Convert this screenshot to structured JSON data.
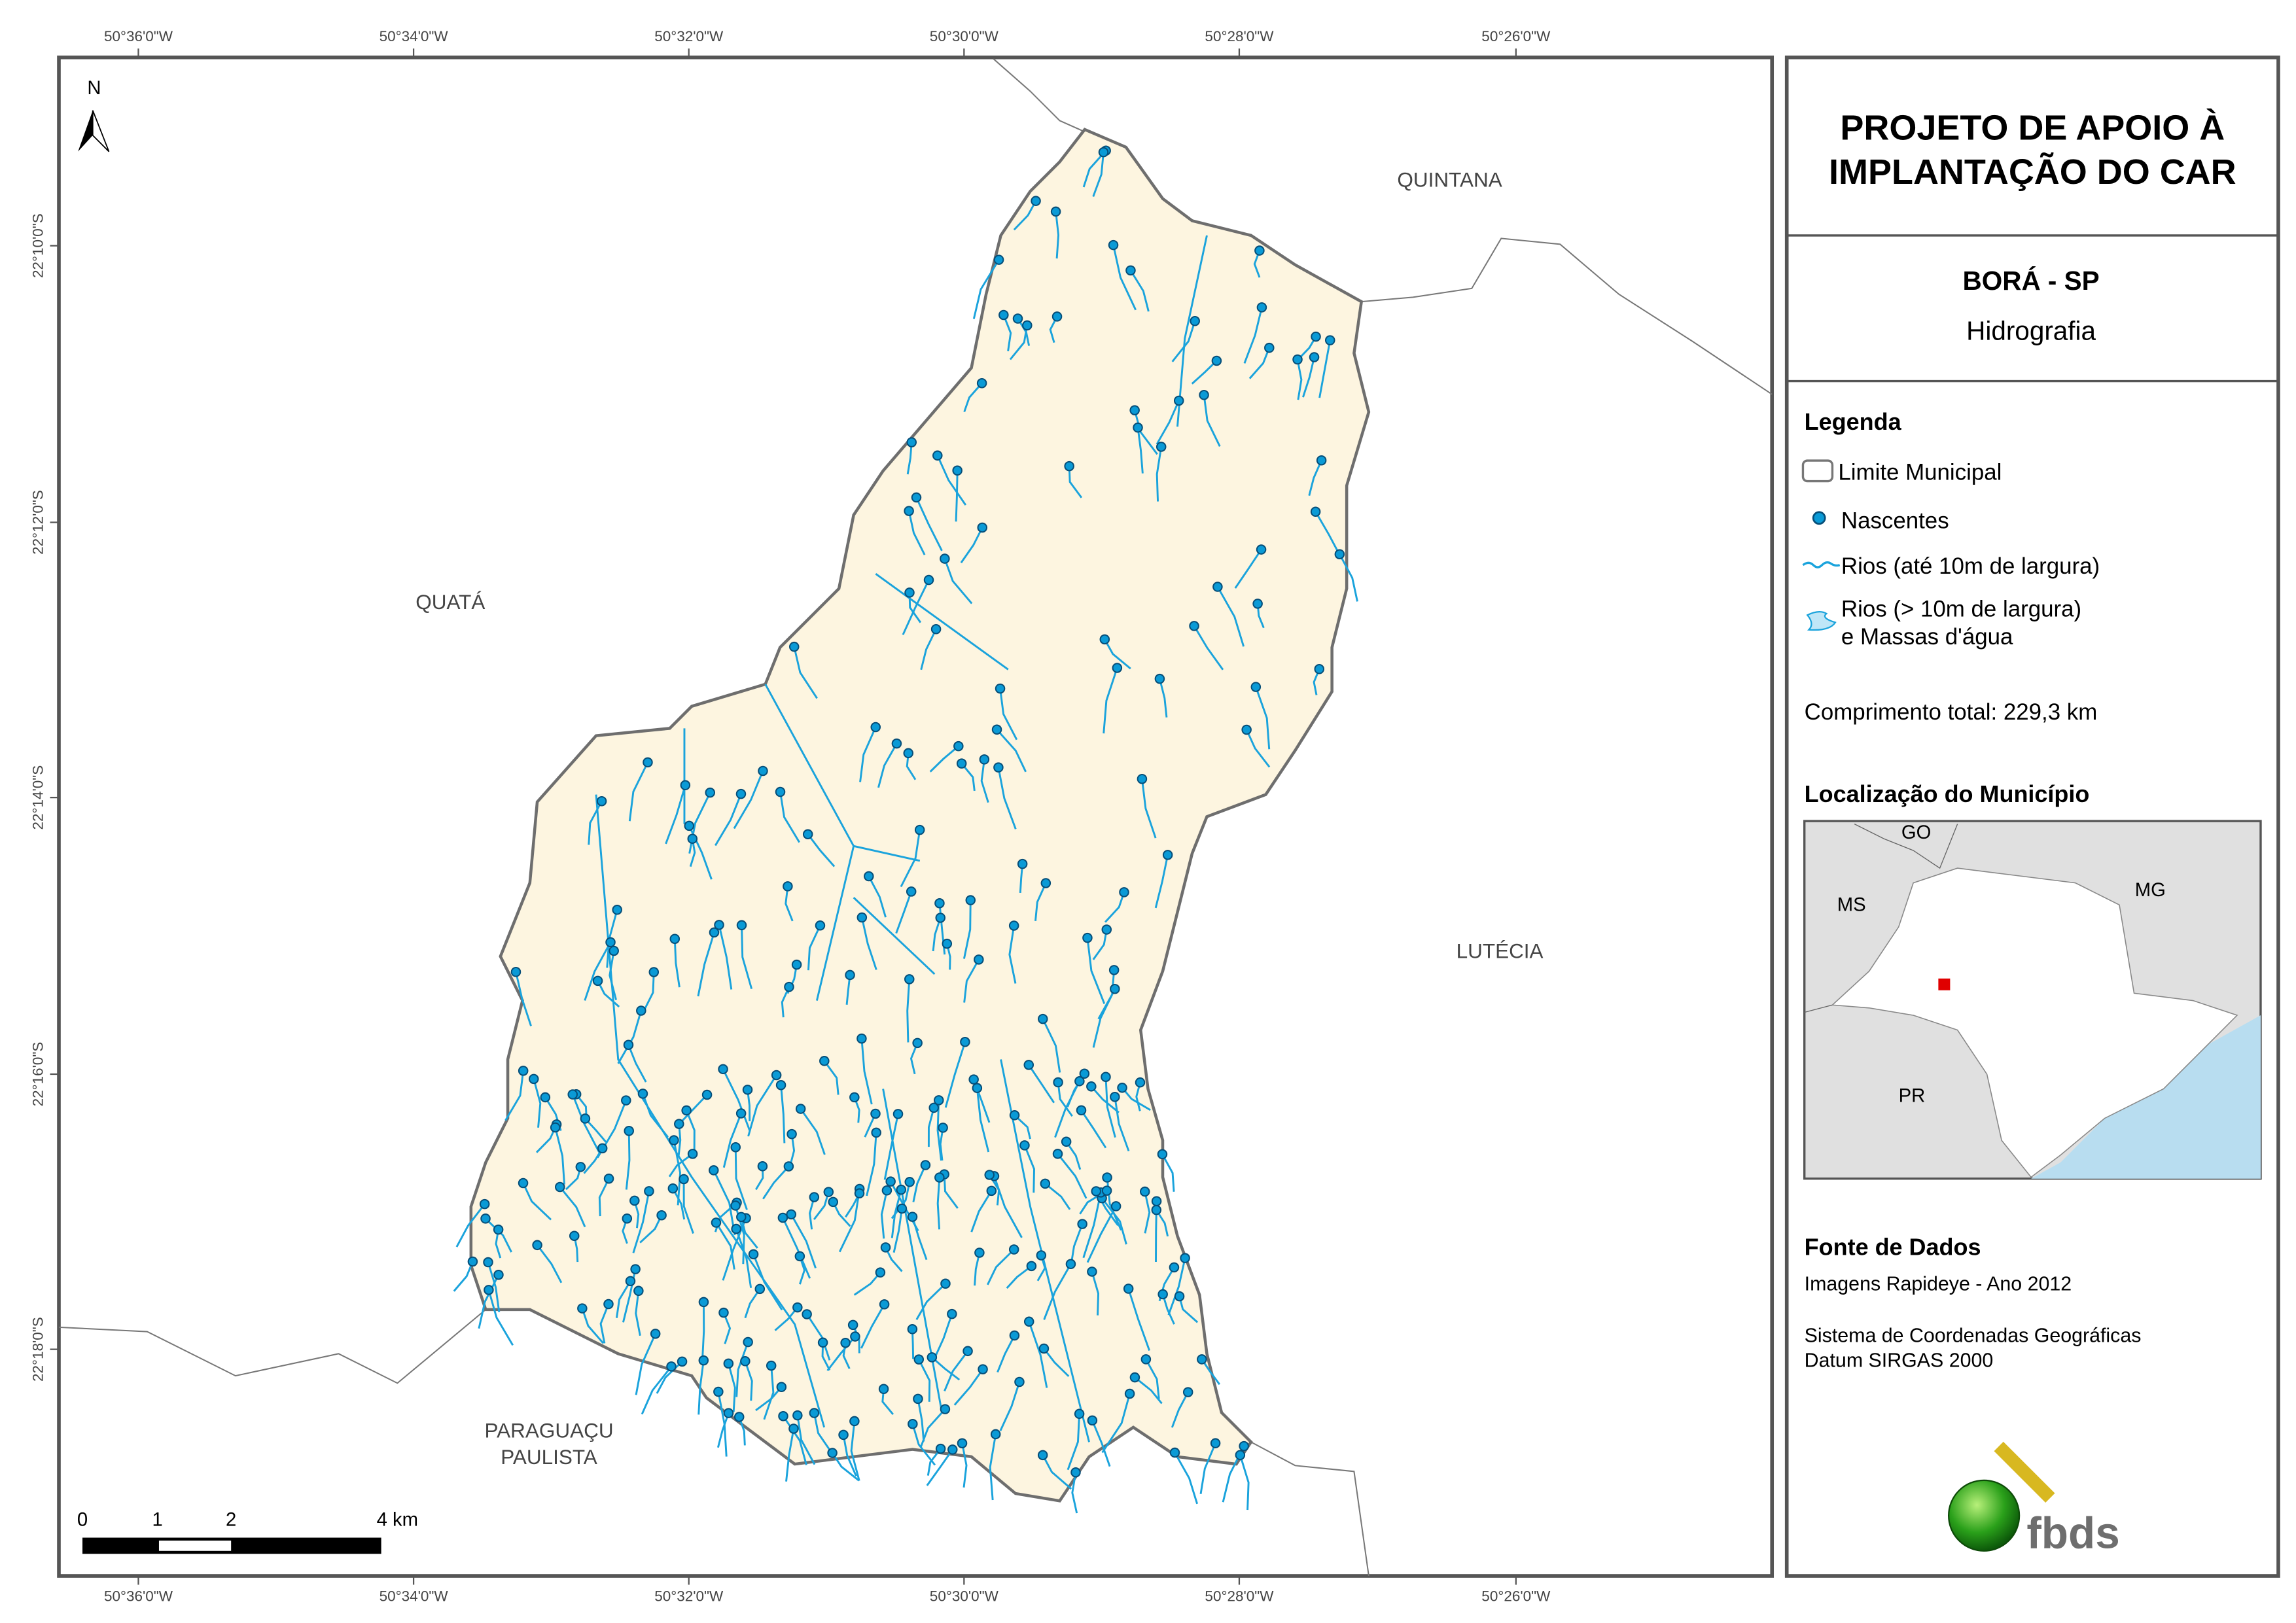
{
  "title": {
    "line1": "PROJETO DE APOIO À",
    "line2": "IMPLANTAÇÃO DO CAR"
  },
  "municipality": {
    "name": "BORÁ - SP",
    "theme": "Hidrografia"
  },
  "legend": {
    "heading": "Legenda",
    "items": [
      {
        "label": "Limite Municipal",
        "icon": "boundary-box-icon"
      },
      {
        "label": "Nascentes",
        "icon": "spring-dot-icon"
      },
      {
        "label": "Rios (até 10m de largura)",
        "icon": "river-line-icon"
      },
      {
        "label": "Rios (> 10m de largura)",
        "label2": "e Massas d'água",
        "icon": "water-body-icon"
      }
    ],
    "total_length": "Comprimento total:  229,3 km"
  },
  "location": {
    "heading": "Localização do Município",
    "labels": {
      "go": "GO",
      "ms": "MS",
      "mg": "MG",
      "pr": "PR"
    }
  },
  "source": {
    "heading": "Fonte de Dados",
    "imagery": "Imagens Rapideye - Ano 2012",
    "crs1": "Sistema de Coordenadas Geográficas",
    "crs2": "Datum SIRGAS 2000",
    "logo_text": "fbds"
  },
  "map": {
    "north": "N",
    "lon_ticks": [
      "50°36'0\"W",
      "50°34'0\"W",
      "50°32'0\"W",
      "50°30'0\"W",
      "50°28'0\"W",
      "50°26'0\"W"
    ],
    "lat_ticks": [
      "22°10'0\"S",
      "22°12'0\"S",
      "22°14'0\"S",
      "22°16'0\"S",
      "22°18'0\"S"
    ],
    "neighbors": {
      "quintana": "QUINTANA",
      "quata": "QUATÁ",
      "lutecia": "LUTÉCIA",
      "paraguacu1": "PARAGUAÇU",
      "paraguacu2": "PAULISTA"
    },
    "scale": {
      "l0": "0",
      "l1": "1",
      "l2": "2",
      "l4": "4 km"
    },
    "colors": {
      "municipality_fill": "#fdf5e0",
      "boundary": "#6e6e6e",
      "river": "#1aa3dc",
      "spring": "#0a85c2",
      "water": "#bfe6f7",
      "highlight": "#e00000"
    }
  }
}
